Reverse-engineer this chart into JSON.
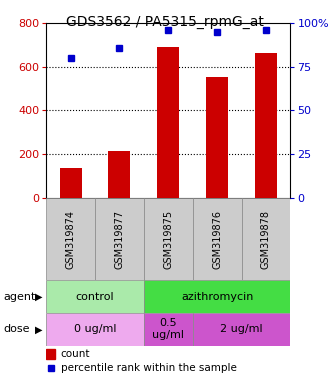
{
  "title": "GDS3562 / PA5315_rpmG_at",
  "samples": [
    "GSM319874",
    "GSM319877",
    "GSM319875",
    "GSM319876",
    "GSM319878"
  ],
  "counts": [
    138,
    213,
    692,
    553,
    661
  ],
  "percentiles": [
    80,
    86,
    96,
    95,
    96
  ],
  "left_ylim": [
    0,
    800
  ],
  "right_ylim": [
    0,
    100
  ],
  "left_yticks": [
    0,
    200,
    400,
    600,
    800
  ],
  "right_yticks": [
    0,
    25,
    50,
    75,
    100
  ],
  "right_yticklabels": [
    "0",
    "25",
    "50",
    "75",
    "100%"
  ],
  "bar_color": "#cc0000",
  "dot_color": "#0000cc",
  "agent_row": [
    {
      "label": "control",
      "span": [
        0,
        2
      ],
      "color": "#aaeaaa"
    },
    {
      "label": "azithromycin",
      "span": [
        2,
        5
      ],
      "color": "#44dd44"
    }
  ],
  "dose_row": [
    {
      "label": "0 ug/ml",
      "span": [
        0,
        2
      ],
      "color": "#eeaaee"
    },
    {
      "label": "0.5\nug/ml",
      "span": [
        2,
        3
      ],
      "color": "#cc55cc"
    },
    {
      "label": "2 ug/ml",
      "span": [
        3,
        5
      ],
      "color": "#cc55cc"
    }
  ],
  "legend_items": [
    {
      "color": "#cc0000",
      "label": "count"
    },
    {
      "color": "#0000cc",
      "label": "percentile rank within the sample"
    }
  ],
  "left_axis_color": "#cc0000",
  "right_axis_color": "#0000cc",
  "title_fontsize": 10,
  "tick_label_fontsize": 8,
  "sample_label_fontsize": 7,
  "annotation_fontsize": 8,
  "legend_fontsize": 7.5
}
